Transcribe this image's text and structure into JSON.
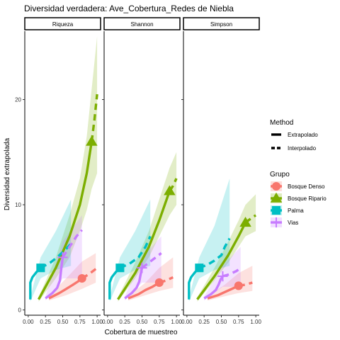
{
  "chart_data": {
    "type": "line",
    "title": "Diversidad verdadera: Ave_Cobertura_Redes de Niebla",
    "xlabel": "Cobertura de muestreo",
    "ylabel": "Diversidad extrapolada",
    "xlim": [
      0,
      1
    ],
    "ylim": [
      -0.5,
      26.5
    ],
    "x_ticks": [
      "0.00",
      "0.25",
      "0.50",
      "0.75",
      "1.00"
    ],
    "y_ticks": [
      {
        "value": 0,
        "label": "0"
      },
      {
        "value": 10,
        "label": "10"
      },
      {
        "value": 20,
        "label": "20"
      }
    ],
    "grid": false,
    "legend_position": "right",
    "method_legend": {
      "title": "Method",
      "items": [
        {
          "label": "Extrapolado",
          "dash": "solid"
        },
        {
          "label": "Interpolado",
          "dash": "dashed"
        }
      ]
    },
    "group_legend": {
      "title": "Grupo",
      "items": [
        {
          "label": "Bosque Denso",
          "color": "#F8766D",
          "shape": "circle"
        },
        {
          "label": "Bosque Ripario",
          "color": "#7CAE00",
          "shape": "triangle"
        },
        {
          "label": "Palma",
          "color": "#00BFC4",
          "shape": "square"
        },
        {
          "label": "Vias",
          "color": "#C77CFF",
          "shape": "plus"
        }
      ]
    },
    "facets": [
      {
        "label": "Riqueza",
        "series": [
          {
            "group": "Bosque Denso",
            "color": "#F8766D",
            "shape": "circle",
            "observed": {
              "x": 0.78,
              "y": 3.0
            },
            "solid": [
              [
                0.3,
                1.1
              ],
              [
                0.45,
                1.6
              ],
              [
                0.55,
                2.0
              ],
              [
                0.65,
                2.4
              ],
              [
                0.72,
                2.7
              ],
              [
                0.78,
                3.0
              ]
            ],
            "dashed": [
              [
                0.78,
                3.0
              ],
              [
                0.88,
                3.4
              ],
              [
                0.98,
                3.9
              ]
            ],
            "band": {
              "x": [
                0.3,
                0.55,
                0.78,
                0.98
              ],
              "lo": [
                0.9,
                1.4,
                2.0,
                2.6
              ],
              "hi": [
                1.3,
                3.0,
                4.6,
                5.4
              ]
            }
          },
          {
            "group": "Bosque Ripario",
            "color": "#7CAE00",
            "shape": "triangle",
            "observed": {
              "x": 0.92,
              "y": 16.0
            },
            "solid": [
              [
                0.15,
                1.0
              ],
              [
                0.4,
                4.0
              ],
              [
                0.6,
                7.0
              ],
              [
                0.75,
                10.0
              ],
              [
                0.85,
                13.0
              ],
              [
                0.92,
                16.0
              ]
            ],
            "dashed": [
              [
                0.92,
                16.0
              ],
              [
                0.96,
                18.0
              ],
              [
                1.0,
                20.5
              ]
            ],
            "band": {
              "x": [
                0.15,
                0.4,
                0.6,
                0.75,
                0.85,
                0.92,
                1.0
              ],
              "lo": [
                0.8,
                3.0,
                5.0,
                7.5,
                9.5,
                11.5,
                13.0
              ],
              "hi": [
                1.2,
                5.0,
                9.0,
                12.5,
                16.5,
                21.0,
                26.0
              ]
            }
          },
          {
            "group": "Palma",
            "color": "#00BFC4",
            "shape": "square",
            "observed": {
              "x": 0.18,
              "y": 4.0
            },
            "solid": [
              [
                0.03,
                1.0
              ],
              [
                0.03,
                2.6
              ],
              [
                0.06,
                3.1
              ],
              [
                0.12,
                3.6
              ],
              [
                0.18,
                4.0
              ]
            ],
            "dashed": [
              [
                0.18,
                4.0
              ],
              [
                0.32,
                4.5
              ],
              [
                0.42,
                5.0
              ],
              [
                0.55,
                5.8
              ],
              [
                0.62,
                6.3
              ]
            ],
            "band": {
              "x": [
                0.03,
                0.18,
                0.4,
                0.62
              ],
              "lo": [
                0.8,
                3.0,
                3.8,
                4.2
              ],
              "hi": [
                1.2,
                5.0,
                7.5,
                10.5
              ]
            }
          },
          {
            "group": "Vias",
            "color": "#C77CFF",
            "shape": "plus",
            "observed": {
              "x": 0.5,
              "y": 5.0
            },
            "solid": [
              [
                0.25,
                1.1
              ],
              [
                0.35,
                1.6
              ],
              [
                0.42,
                2.1
              ],
              [
                0.46,
                2.8
              ],
              [
                0.48,
                4.0
              ],
              [
                0.5,
                5.0
              ]
            ],
            "dashed": [
              [
                0.5,
                5.0
              ],
              [
                0.6,
                6.0
              ],
              [
                0.7,
                7.0
              ],
              [
                0.78,
                7.6
              ]
            ],
            "band": {
              "x": [
                0.25,
                0.5,
                0.78
              ],
              "lo": [
                0.9,
                3.0,
                3.0
              ],
              "hi": [
                1.3,
                6.5,
                9.0
              ]
            }
          }
        ]
      },
      {
        "label": "Shannon",
        "series": [
          {
            "group": "Bosque Denso",
            "color": "#F8766D",
            "shape": "circle",
            "observed": {
              "x": 0.75,
              "y": 2.6
            },
            "solid": [
              [
                0.3,
                1.1
              ],
              [
                0.45,
                1.5
              ],
              [
                0.55,
                1.9
              ],
              [
                0.65,
                2.2
              ],
              [
                0.75,
                2.6
              ]
            ],
            "dashed": [
              [
                0.75,
                2.6
              ],
              [
                0.85,
                2.8
              ],
              [
                0.95,
                3.1
              ]
            ],
            "band": {
              "x": [
                0.3,
                0.55,
                0.75,
                0.95
              ],
              "lo": [
                0.9,
                1.4,
                1.8,
                2.1
              ],
              "hi": [
                1.3,
                2.6,
                4.0,
                5.0
              ]
            }
          },
          {
            "group": "Bosque Ripario",
            "color": "#7CAE00",
            "shape": "triangle",
            "observed": {
              "x": 0.9,
              "y": 11.3
            },
            "solid": [
              [
                0.15,
                1.0
              ],
              [
                0.4,
                3.5
              ],
              [
                0.6,
                6.0
              ],
              [
                0.75,
                8.5
              ],
              [
                0.9,
                11.3
              ]
            ],
            "dashed": [
              [
                0.9,
                11.3
              ],
              [
                0.95,
                11.8
              ],
              [
                1.0,
                12.5
              ]
            ],
            "band": {
              "x": [
                0.15,
                0.4,
                0.6,
                0.75,
                0.9,
                1.0
              ],
              "lo": [
                0.8,
                3.0,
                5.0,
                7.0,
                9.0,
                10.0
              ],
              "hi": [
                1.2,
                4.5,
                7.5,
                10.5,
                13.5,
                15.0
              ]
            }
          },
          {
            "group": "Palma",
            "color": "#00BFC4",
            "shape": "square",
            "observed": {
              "x": 0.18,
              "y": 4.0
            },
            "solid": [
              [
                0.03,
                1.0
              ],
              [
                0.03,
                2.6
              ],
              [
                0.06,
                3.1
              ],
              [
                0.12,
                3.6
              ],
              [
                0.18,
                4.0
              ]
            ],
            "dashed": [
              [
                0.18,
                4.0
              ],
              [
                0.32,
                4.4
              ],
              [
                0.45,
                5.0
              ],
              [
                0.55,
                6.0
              ],
              [
                0.62,
                7.0
              ]
            ],
            "band": {
              "x": [
                0.03,
                0.18,
                0.4,
                0.62
              ],
              "lo": [
                0.8,
                3.0,
                3.8,
                4.2
              ],
              "hi": [
                1.2,
                5.0,
                7.5,
                10.5
              ]
            }
          },
          {
            "group": "Vias",
            "color": "#C77CFF",
            "shape": "plus",
            "observed": {
              "x": 0.5,
              "y": 4.0
            },
            "solid": [
              [
                0.25,
                1.1
              ],
              [
                0.35,
                1.6
              ],
              [
                0.42,
                2.1
              ],
              [
                0.46,
                2.7
              ],
              [
                0.48,
                3.4
              ],
              [
                0.5,
                4.0
              ]
            ],
            "dashed": [
              [
                0.5,
                4.0
              ],
              [
                0.6,
                4.5
              ],
              [
                0.7,
                5.0
              ],
              [
                0.78,
                5.4
              ]
            ],
            "band": {
              "x": [
                0.25,
                0.5,
                0.78
              ],
              "lo": [
                0.9,
                2.6,
                2.6
              ],
              "hi": [
                1.3,
                5.0,
                7.0
              ]
            }
          }
        ]
      },
      {
        "label": "Simpson",
        "series": [
          {
            "group": "Bosque Denso",
            "color": "#F8766D",
            "shape": "circle",
            "observed": {
              "x": 0.75,
              "y": 2.3
            },
            "solid": [
              [
                0.3,
                1.1
              ],
              [
                0.45,
                1.4
              ],
              [
                0.55,
                1.7
              ],
              [
                0.65,
                2.0
              ],
              [
                0.75,
                2.3
              ]
            ],
            "dashed": [
              [
                0.75,
                2.3
              ],
              [
                0.85,
                2.4
              ],
              [
                0.95,
                2.6
              ]
            ],
            "band": {
              "x": [
                0.3,
                0.55,
                0.75,
                0.95
              ],
              "lo": [
                0.9,
                1.3,
                1.6,
                1.8
              ],
              "hi": [
                1.3,
                2.4,
                3.5,
                4.2
              ]
            }
          },
          {
            "group": "Bosque Ripario",
            "color": "#7CAE00",
            "shape": "triangle",
            "observed": {
              "x": 0.85,
              "y": 8.3
            },
            "solid": [
              [
                0.15,
                1.0
              ],
              [
                0.4,
                3.2
              ],
              [
                0.6,
                5.2
              ],
              [
                0.75,
                7.0
              ],
              [
                0.85,
                8.3
              ]
            ],
            "dashed": [
              [
                0.85,
                8.3
              ],
              [
                0.95,
                8.8
              ],
              [
                1.0,
                9.0
              ]
            ],
            "band": {
              "x": [
                0.15,
                0.4,
                0.6,
                0.75,
                0.85,
                1.0
              ],
              "lo": [
                0.8,
                2.8,
                4.5,
                6.0,
                7.0,
                7.5
              ],
              "hi": [
                1.2,
                4.0,
                6.5,
                8.5,
                10.0,
                11.0
              ]
            }
          },
          {
            "group": "Palma",
            "color": "#00BFC4",
            "shape": "square",
            "observed": {
              "x": 0.18,
              "y": 4.0
            },
            "solid": [
              [
                0.03,
                1.0
              ],
              [
                0.03,
                2.6
              ],
              [
                0.06,
                3.1
              ],
              [
                0.12,
                3.6
              ],
              [
                0.18,
                4.0
              ]
            ],
            "dashed": [
              [
                0.18,
                4.0
              ],
              [
                0.3,
                4.3
              ],
              [
                0.4,
                4.7
              ],
              [
                0.5,
                5.2
              ],
              [
                0.55,
                6.0
              ],
              [
                0.62,
                6.8
              ]
            ],
            "band": {
              "x": [
                0.03,
                0.18,
                0.4,
                0.62
              ],
              "lo": [
                0.8,
                3.0,
                3.8,
                4.2
              ],
              "hi": [
                1.2,
                5.0,
                8.0,
                12.5
              ]
            }
          },
          {
            "group": "Vias",
            "color": "#C77CFF",
            "shape": "plus",
            "observed": {
              "x": 0.52,
              "y": 3.2
            },
            "solid": [
              [
                0.25,
                1.1
              ],
              [
                0.35,
                1.5
              ],
              [
                0.42,
                1.9
              ],
              [
                0.46,
                2.4
              ],
              [
                0.49,
                2.9
              ],
              [
                0.52,
                3.2
              ]
            ],
            "dashed": [
              [
                0.52,
                3.2
              ],
              [
                0.62,
                3.4
              ],
              [
                0.72,
                3.7
              ],
              [
                0.78,
                4.0
              ]
            ],
            "band": {
              "x": [
                0.25,
                0.52,
                0.78
              ],
              "lo": [
                0.9,
                2.2,
                2.2
              ],
              "hi": [
                1.3,
                4.2,
                6.0
              ]
            }
          }
        ]
      }
    ]
  }
}
